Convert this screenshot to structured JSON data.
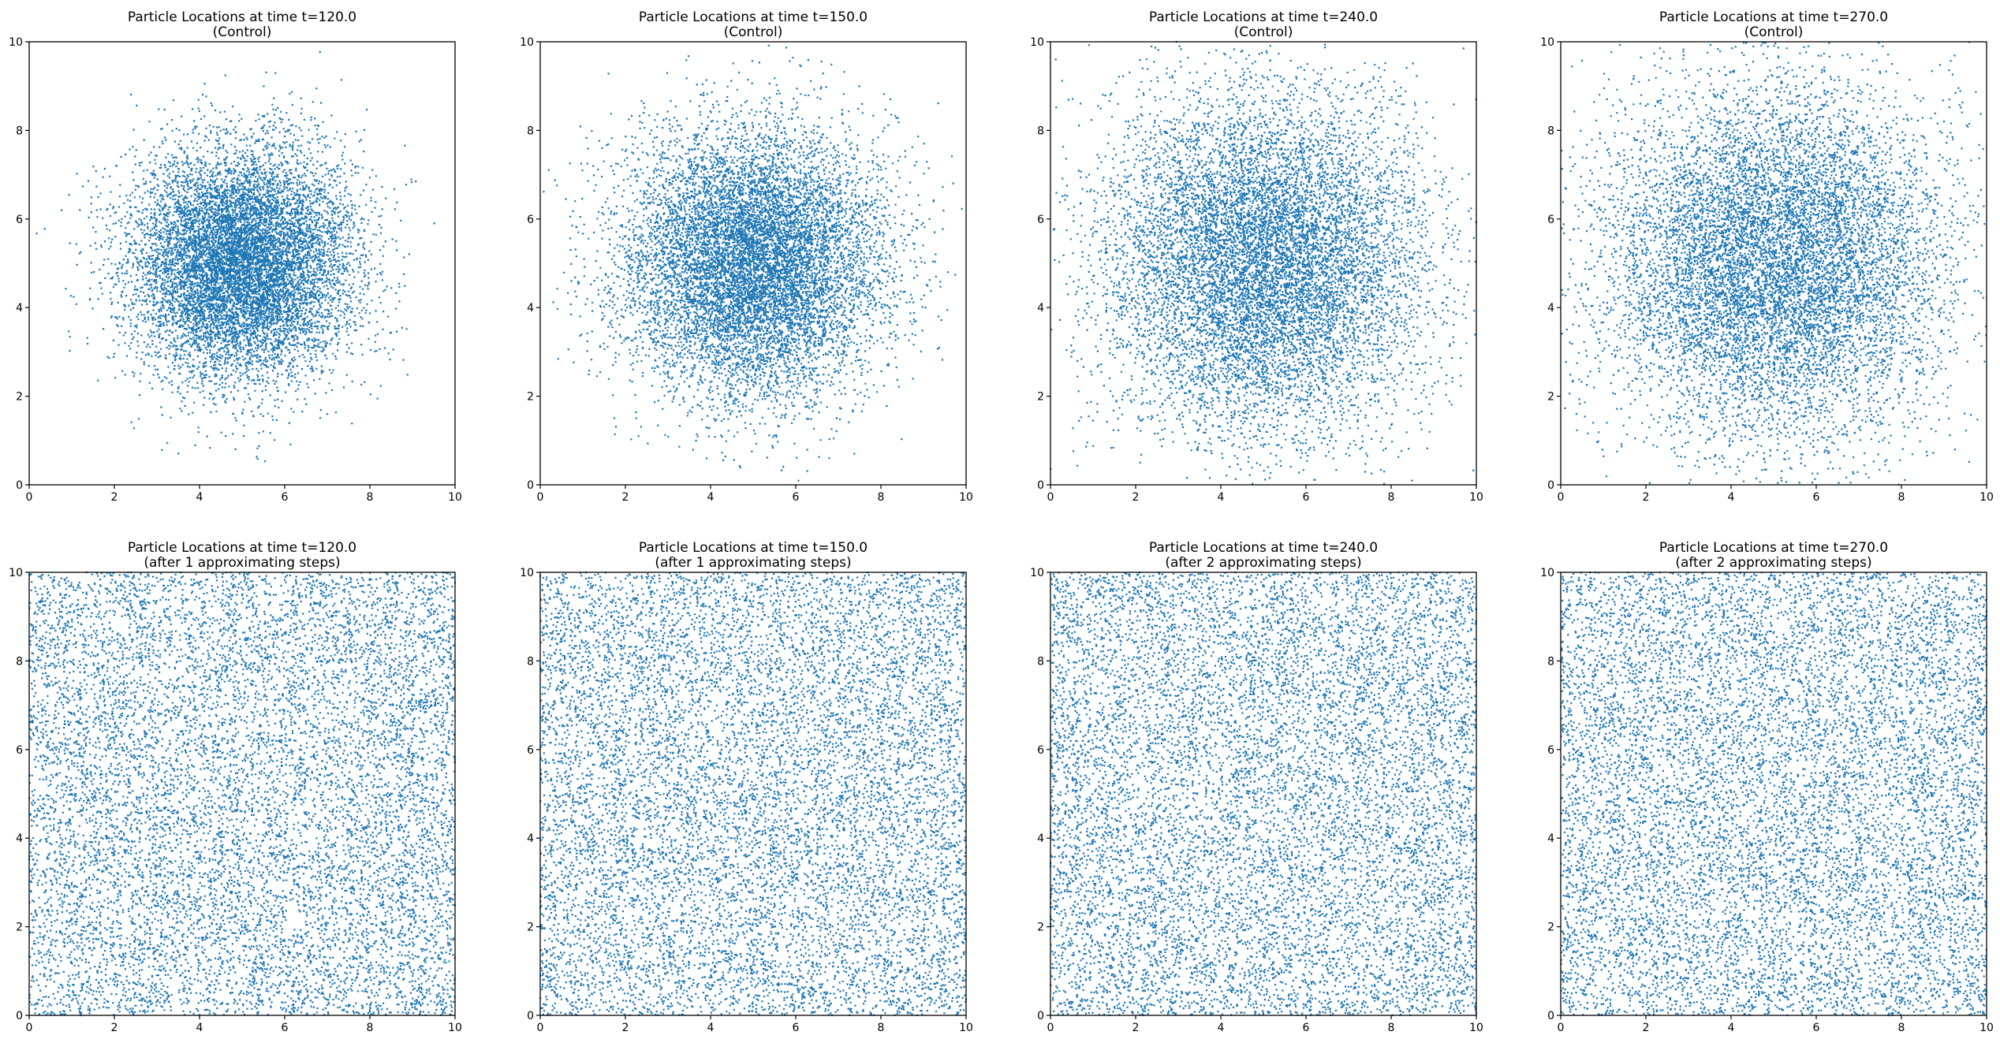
{
  "figure": {
    "background": "#ffffff",
    "marker_color": "#1f77b4",
    "marker": "small dots",
    "layout": "2 rows x 4 columns"
  },
  "chart_data": [
    {
      "type": "scatter",
      "title_line1": "Particle Locations at time t=120.0",
      "title_line2": "(Control)",
      "xlim": [
        0,
        10
      ],
      "ylim": [
        0,
        10
      ],
      "xticks": [
        "0",
        "2",
        "4",
        "6",
        "8",
        "10"
      ],
      "yticks": [
        "0",
        "2",
        "4",
        "6",
        "8",
        "10"
      ],
      "grid": false,
      "distribution": {
        "kind": "gaussian",
        "center": [
          5,
          5
        ],
        "std": 1.3
      },
      "approx_point_count": 10000
    },
    {
      "type": "scatter",
      "title_line1": "Particle Locations at time t=150.0",
      "title_line2": "(Control)",
      "xlim": [
        0,
        10
      ],
      "ylim": [
        0,
        10
      ],
      "xticks": [
        "0",
        "2",
        "4",
        "6",
        "8",
        "10"
      ],
      "yticks": [
        "0",
        "2",
        "4",
        "6",
        "8",
        "10"
      ],
      "grid": false,
      "distribution": {
        "kind": "gaussian",
        "center": [
          5,
          5
        ],
        "std": 1.5
      },
      "approx_point_count": 10000
    },
    {
      "type": "scatter",
      "title_line1": "Particle Locations at time t=240.0",
      "title_line2": "(Control)",
      "xlim": [
        0,
        10
      ],
      "ylim": [
        0,
        10
      ],
      "xticks": [
        "0",
        "2",
        "4",
        "6",
        "8",
        "10"
      ],
      "yticks": [
        "0",
        "2",
        "4",
        "6",
        "8",
        "10"
      ],
      "grid": false,
      "distribution": {
        "kind": "gaussian",
        "center": [
          5,
          5
        ],
        "std": 1.9
      },
      "approx_point_count": 10000
    },
    {
      "type": "scatter",
      "title_line1": "Particle Locations at time t=270.0",
      "title_line2": "(Control)",
      "xlim": [
        0,
        10
      ],
      "ylim": [
        0,
        10
      ],
      "xticks": [
        "0",
        "2",
        "4",
        "6",
        "8",
        "10"
      ],
      "yticks": [
        "0",
        "2",
        "4",
        "6",
        "8",
        "10"
      ],
      "grid": false,
      "distribution": {
        "kind": "gaussian",
        "center": [
          5,
          5
        ],
        "std": 2.0
      },
      "approx_point_count": 10000
    },
    {
      "type": "scatter",
      "title_line1": "Particle Locations at time t=120.0",
      "title_line2": "(after 1 approximating steps)",
      "xlim": [
        0,
        10
      ],
      "ylim": [
        0,
        10
      ],
      "xticks": [
        "0",
        "2",
        "4",
        "6",
        "8",
        "10"
      ],
      "yticks": [
        "0",
        "2",
        "4",
        "6",
        "8",
        "10"
      ],
      "grid": false,
      "distribution": {
        "kind": "uniform",
        "range": [
          0,
          10
        ]
      },
      "approx_point_count": 10000
    },
    {
      "type": "scatter",
      "title_line1": "Particle Locations at time t=150.0",
      "title_line2": "(after 1 approximating steps)",
      "xlim": [
        0,
        10
      ],
      "ylim": [
        0,
        10
      ],
      "xticks": [
        "0",
        "2",
        "4",
        "6",
        "8",
        "10"
      ],
      "yticks": [
        "0",
        "2",
        "4",
        "6",
        "8",
        "10"
      ],
      "grid": false,
      "distribution": {
        "kind": "uniform",
        "range": [
          0,
          10
        ]
      },
      "approx_point_count": 10000
    },
    {
      "type": "scatter",
      "title_line1": "Particle Locations at time t=240.0",
      "title_line2": "(after 2 approximating steps)",
      "xlim": [
        0,
        10
      ],
      "ylim": [
        0,
        10
      ],
      "xticks": [
        "0",
        "2",
        "4",
        "6",
        "8",
        "10"
      ],
      "yticks": [
        "0",
        "2",
        "4",
        "6",
        "8",
        "10"
      ],
      "grid": false,
      "distribution": {
        "kind": "uniform",
        "range": [
          0,
          10
        ]
      },
      "approx_point_count": 10000
    },
    {
      "type": "scatter",
      "title_line1": "Particle Locations at time t=270.0",
      "title_line2": "(after 2 approximating steps)",
      "xlim": [
        0,
        10
      ],
      "ylim": [
        0,
        10
      ],
      "xticks": [
        "0",
        "2",
        "4",
        "6",
        "8",
        "10"
      ],
      "yticks": [
        "0",
        "2",
        "4",
        "6",
        "8",
        "10"
      ],
      "grid": false,
      "distribution": {
        "kind": "uniform",
        "range": [
          0,
          10
        ]
      },
      "approx_point_count": 10000
    }
  ]
}
